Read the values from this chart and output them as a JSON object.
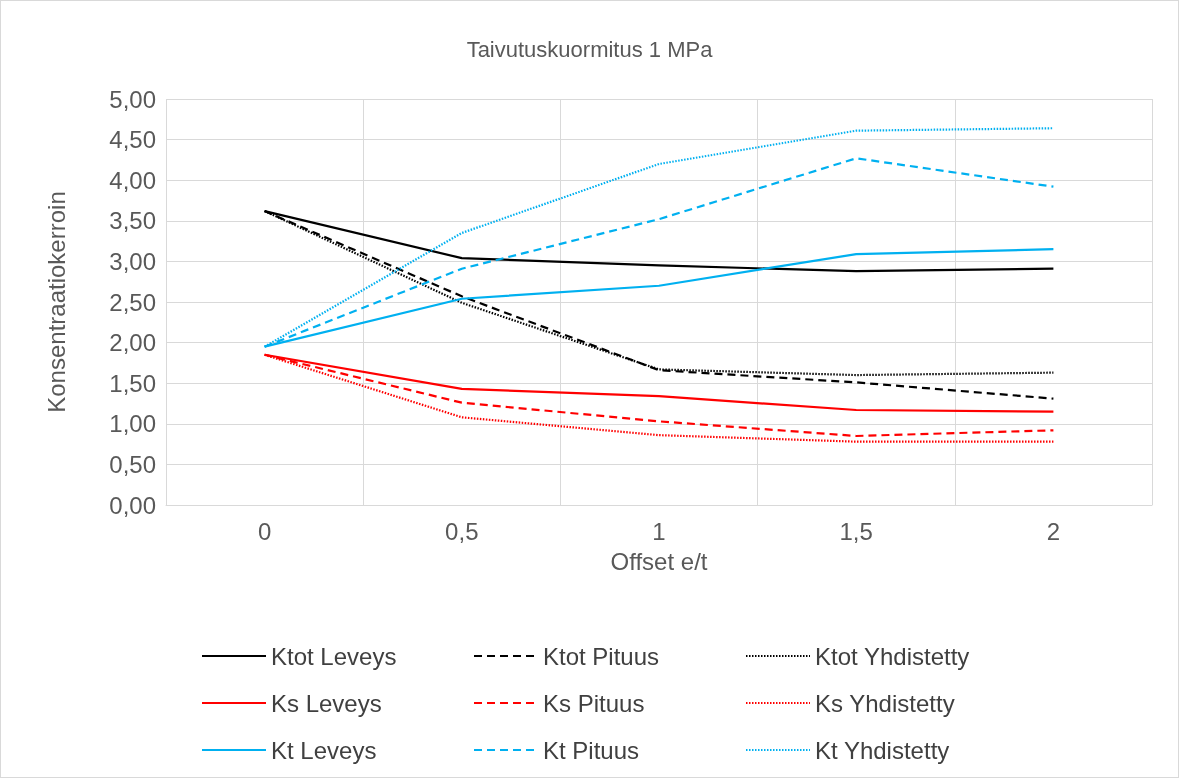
{
  "chart_data": {
    "type": "line",
    "title": "Taivutuskuormitus 1 MPa",
    "xlabel": "Offset e/t",
    "ylabel": "Konsentraatiokerroin",
    "categories": [
      "0",
      "0,5",
      "1",
      "1,5",
      "2"
    ],
    "ylim": [
      0,
      5
    ],
    "yticks": [
      {
        "value": 0,
        "label": "0,00"
      },
      {
        "value": 0.5,
        "label": "0,50"
      },
      {
        "value": 1,
        "label": "1,00"
      },
      {
        "value": 1.5,
        "label": "1,50"
      },
      {
        "value": 2,
        "label": "2,00"
      },
      {
        "value": 2.5,
        "label": "2,50"
      },
      {
        "value": 3,
        "label": "3,00"
      },
      {
        "value": 3.5,
        "label": "3,50"
      },
      {
        "value": 4,
        "label": "4,00"
      },
      {
        "value": 4.5,
        "label": "4,50"
      },
      {
        "value": 5,
        "label": "5,00"
      }
    ],
    "grid": true,
    "legend": "bottom",
    "marker": "none",
    "series": [
      {
        "name": "Ktot Leveys",
        "color": "#000000",
        "line_style": "solid",
        "values": [
          3.62,
          3.04,
          2.95,
          2.88,
          2.91
        ]
      },
      {
        "name": "Ktot Pituus",
        "color": "#000000",
        "line_style": "dashed",
        "values": [
          3.62,
          2.57,
          1.66,
          1.51,
          1.31
        ]
      },
      {
        "name": "Ktot Yhdistetty",
        "color": "#000000",
        "line_style": "dotted",
        "values": [
          3.62,
          2.49,
          1.67,
          1.6,
          1.63
        ]
      },
      {
        "name": "Ks Leveys",
        "color": "#ff0000",
        "line_style": "solid",
        "values": [
          1.85,
          1.43,
          1.34,
          1.17,
          1.15
        ]
      },
      {
        "name": "Ks Pituus",
        "color": "#ff0000",
        "line_style": "dashed",
        "values": [
          1.85,
          1.26,
          1.03,
          0.85,
          0.92
        ]
      },
      {
        "name": "Ks Yhdistetty",
        "color": "#ff0000",
        "line_style": "dotted",
        "values": [
          1.85,
          1.08,
          0.86,
          0.78,
          0.78
        ]
      },
      {
        "name": "Kt Leveys",
        "color": "#00b0f0",
        "line_style": "solid",
        "values": [
          1.95,
          2.54,
          2.7,
          3.09,
          3.15
        ]
      },
      {
        "name": "Kt Pituus",
        "color": "#00b0f0",
        "line_style": "dashed",
        "values": [
          1.95,
          2.91,
          3.52,
          4.27,
          3.92
        ]
      },
      {
        "name": "Kt Yhdistetty",
        "color": "#00b0f0",
        "line_style": "dotted",
        "values": [
          1.95,
          3.35,
          4.2,
          4.61,
          4.64
        ]
      }
    ]
  }
}
